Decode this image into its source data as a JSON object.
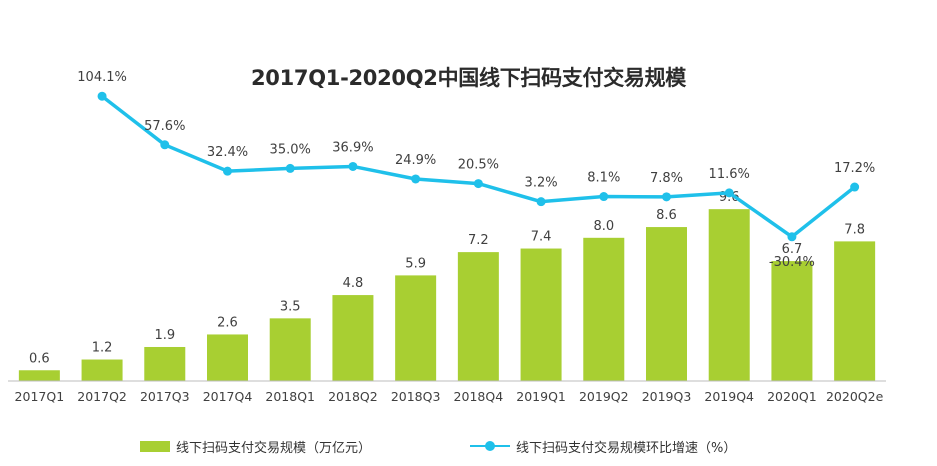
{
  "title": "2017Q1-2020Q2中国线下扫码支付交易规模",
  "colors": {
    "bar": "#a8cf32",
    "line": "#1fc0ea",
    "axis": "#bdbdbd",
    "text": "#404040"
  },
  "chart_data": {
    "type": "bar",
    "title": "2017Q1-2020Q2中国线下扫码支付交易规模",
    "categories": [
      "2017Q1",
      "2017Q2",
      "2017Q3",
      "2017Q4",
      "2018Q1",
      "2018Q2",
      "2018Q3",
      "2018Q4",
      "2019Q1",
      "2019Q2",
      "2019Q3",
      "2019Q4",
      "2020Q1",
      "2020Q2e"
    ],
    "series": [
      {
        "name": "线下扫码支付交易规模（万亿元）",
        "type": "bar",
        "axis": "left",
        "values": [
          0.6,
          1.2,
          1.9,
          2.6,
          3.5,
          4.8,
          5.9,
          7.2,
          7.4,
          8.0,
          8.6,
          9.6,
          6.7,
          7.8
        ],
        "labels": [
          "0.6",
          "1.2",
          "1.9",
          "2.6",
          "3.5",
          "4.8",
          "5.9",
          "7.2",
          "7.4",
          "8.0",
          "8.6",
          "9.6",
          "6.7",
          "7.8"
        ]
      },
      {
        "name": "线下扫码支付交易规模环比增速（%）",
        "type": "line",
        "axis": "right",
        "values": [
          null,
          104.1,
          57.6,
          32.4,
          35.0,
          36.9,
          24.9,
          20.5,
          3.2,
          8.1,
          7.8,
          11.6,
          -30.4,
          17.2
        ],
        "labels": [
          "",
          "104.1%",
          "57.6%",
          "32.4%",
          "35.0%",
          "36.9%",
          "24.9%",
          "20.5%",
          "3.2%",
          "8.1%",
          "7.8%",
          "11.6%",
          "-30.4%",
          "17.2%"
        ]
      }
    ],
    "legend": "bottom",
    "grid": false
  },
  "legend": {
    "bar_label": "线下扫码支付交易规模（万亿元）",
    "line_label": "线下扫码支付交易规模环比增速（%）"
  }
}
